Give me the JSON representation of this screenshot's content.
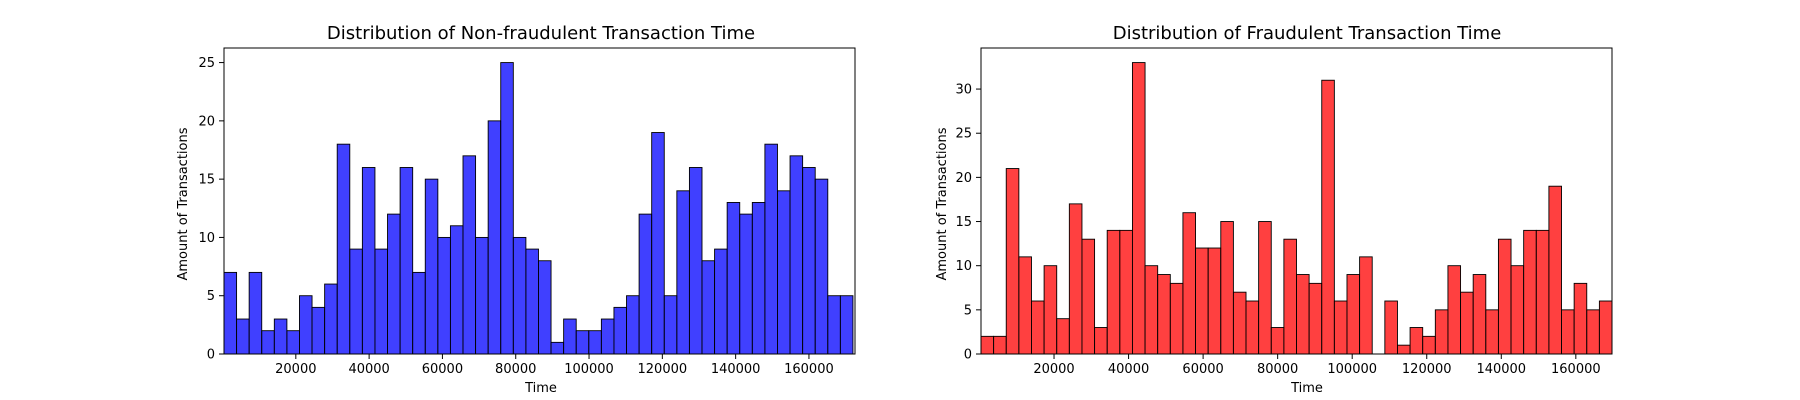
{
  "chart_data": [
    {
      "type": "bar",
      "title": "Distribution of Non-fraudulent Transaction Time",
      "xlabel": "Time",
      "ylabel": "Amount of Transactions",
      "color": "#0000ff",
      "bin_start": 406,
      "bin_width": 3432,
      "values": [
        7,
        3,
        7,
        2,
        3,
        2,
        5,
        4,
        6,
        18,
        9,
        16,
        9,
        12,
        16,
        7,
        15,
        10,
        11,
        17,
        10,
        20,
        25,
        10,
        9,
        8,
        1,
        3,
        2,
        2,
        3,
        4,
        5,
        12,
        19,
        5,
        14,
        16,
        8,
        9,
        13,
        12,
        13,
        18,
        14,
        17,
        16,
        15,
        5,
        5
      ],
      "xlim": [
        406,
        172566
      ],
      "ylim": [
        0,
        26.25
      ],
      "xticks": [
        20000,
        40000,
        60000,
        80000,
        100000,
        120000,
        140000,
        160000
      ],
      "xtick_labels": [
        "20000",
        "40000",
        "60000",
        "80000",
        "100000",
        "120000",
        "140000",
        "160000"
      ],
      "yticks": [
        0,
        5,
        10,
        15,
        20,
        25
      ],
      "ytick_labels": [
        "0",
        "5",
        "10",
        "15",
        "20",
        "25"
      ],
      "grid": false,
      "legend": "none"
    },
    {
      "type": "bar",
      "title": "Distribution of Fraudulent Transaction Time",
      "xlabel": "Time",
      "ylabel": "Amount of Transactions",
      "color": "#ff0000",
      "bin_start": 406,
      "bin_width": 3386,
      "values": [
        2,
        2,
        21,
        11,
        6,
        10,
        4,
        17,
        13,
        3,
        14,
        14,
        33,
        10,
        9,
        8,
        16,
        12,
        12,
        15,
        7,
        6,
        15,
        3,
        13,
        9,
        8,
        31,
        6,
        9,
        11,
        0,
        6,
        1,
        3,
        2,
        5,
        10,
        7,
        9,
        5,
        13,
        10,
        14,
        14,
        19,
        5,
        8,
        5,
        6
      ],
      "xlim": [
        406,
        169706
      ],
      "ylim": [
        0,
        34.65
      ],
      "xticks": [
        20000,
        40000,
        60000,
        80000,
        100000,
        120000,
        140000,
        160000
      ],
      "xtick_labels": [
        "20000",
        "40000",
        "60000",
        "80000",
        "100000",
        "120000",
        "140000",
        "160000"
      ],
      "yticks": [
        0,
        5,
        10,
        15,
        20,
        25,
        30
      ],
      "ytick_labels": [
        "0",
        "5",
        "10",
        "15",
        "20",
        "25",
        "30"
      ],
      "grid": false,
      "legend": "none"
    }
  ]
}
